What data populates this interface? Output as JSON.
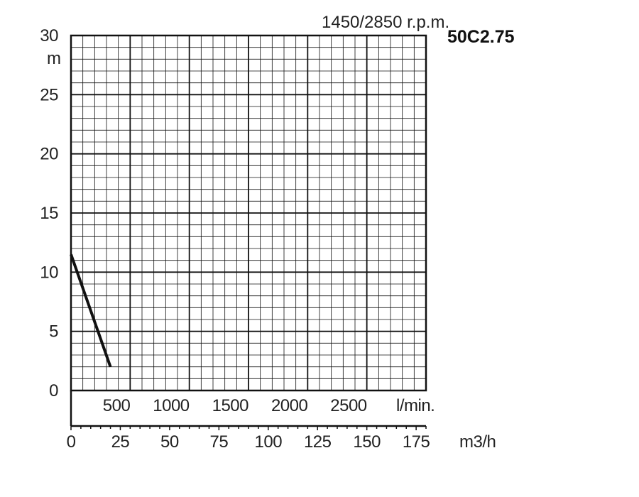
{
  "chart_data": {
    "type": "line",
    "title": "1450/2850 r.p.m.",
    "model": "50C2.75",
    "ylabel": "m",
    "x_unit_lmin": "l/min.",
    "x_unit_m3h": "m3/h",
    "ylim": [
      0,
      30
    ],
    "xlim_m3h": [
      0,
      180
    ],
    "y_ticks": [
      "0",
      "5",
      "10",
      "15",
      "20",
      "25",
      "30"
    ],
    "x_ticks_lmin": [
      "500",
      "1000",
      "1500",
      "2000",
      "2500"
    ],
    "x_ticks_m3h": [
      "0",
      "25",
      "50",
      "75",
      "100",
      "125",
      "150",
      "175"
    ],
    "grid": true,
    "series": [
      {
        "x": [
          0,
          20
        ],
        "y": [
          11.5,
          2
        ],
        "color": "#111111"
      }
    ]
  }
}
